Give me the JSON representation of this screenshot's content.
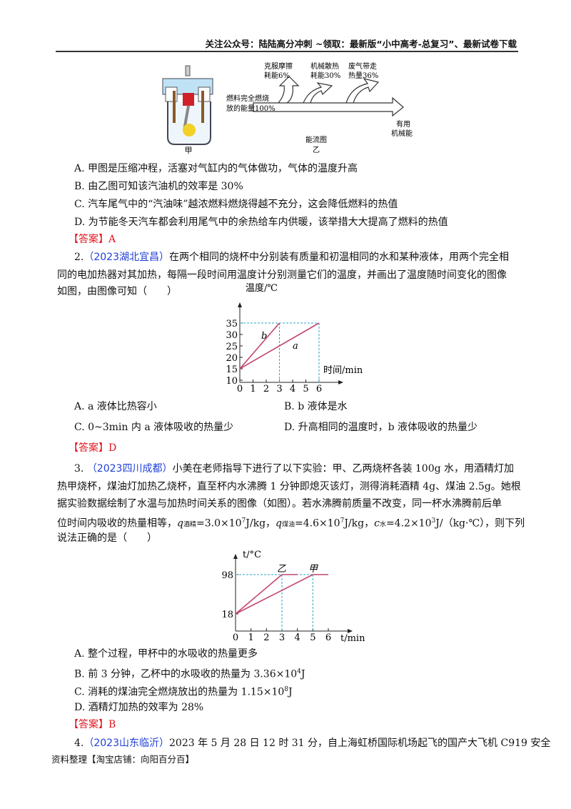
{
  "header": {
    "text": "关注公众号：陆陆高分冲刺  ~领取：最新版“小中高考-总复习”、最新试卷下载"
  },
  "figure1": {
    "label_jia": "甲",
    "label_yi": "乙",
    "caption": "能流图",
    "flows": [
      {
        "l1": "克服摩擦",
        "l2": "耗能6%"
      },
      {
        "l1": "机械散热",
        "l2": "耗能30%"
      },
      {
        "l1": "废气带走",
        "l2": "热量36%"
      }
    ],
    "input_l1": "燃料完全燃烧",
    "input_l2": "放的能量100%",
    "output_l1": "有用",
    "output_l2": "机械能"
  },
  "q1": {
    "options": [
      "A. 甲图是压缩冲程，活塞对气缸内的气体做功，气体的温度升高",
      "B. 由乙图可知该汽油机的效率是 30%",
      "C. 汽车尾气中的“汽油味”越浓燃料燃烧得越不充分，这会降低燃料的热值",
      "D. 为节能冬天汽车都会利用尾气中的余热给车内供暖，该举措大大提高了燃料的热值"
    ],
    "answer_label": "【答案】",
    "answer": "A"
  },
  "q2": {
    "num": "2.",
    "source": "（2023湖北宜昌）",
    "lines": [
      "在两个相同的烧杯中分别装有质量和初温相同的水和某种液体，用两个完全相",
      "同的电加热器对其加热，每隔一段时间用温度计分别测量它们的温度，并画出了温度随时间变化的图像",
      "如图，由图像可知（　　）"
    ],
    "options": [
      "A. a 液体比热容小",
      "B. b 液体是水",
      "C. 0~3min 内 a 液体吸收的热量少",
      "D. 升高相同的温度时，b 液体吸收的热量少"
    ],
    "answer_label": "【答案】",
    "answer": "D"
  },
  "q3": {
    "num": "3.",
    "source": "（2023四川成都）",
    "lines": [
      "小美在老师指导下进行了以下实验：甲、乙两烧杯各装 100g 水，用酒精灯加",
      "热甲烧杯，煤油灯加热乙烧杯，直至杯内水沸腾 1 分钟即熄灭该灯，测得消耗酒精 4g、煤油 2.5g。她根",
      "据实验数据绘制了水温与加热时间关系的图像（如图）。若水沸腾前质量不改变，同一杯水沸腾前后单"
    ],
    "line4": {
      "q1": "q",
      "s1": "酒精",
      "v1": "=3.0×10",
      "e1": "7",
      "u1": "J/kg，",
      "q2": "q",
      "s2": "煤油",
      "v2": "=4.6×10",
      "e2": "7",
      "u2": "J/kg，",
      "c": "c",
      "s3": "水",
      "v3": "=4.2×10",
      "e3": "3",
      "u3": "J/（kg·℃），则下列",
      "pre": "位时间内吸收的热量相等，"
    },
    "line5": "说法正确的是（　　）",
    "options": [
      "A. 整个过程，甲杯中的水吸收的热量更多",
      {
        "pre": "B. 前 3 分钟，乙杯中的水吸收的热量为 3.36×10",
        "exp": "4",
        "post": "J"
      },
      {
        "pre": "C. 消耗的煤油完全燃烧放出的热量为 1.15×10",
        "exp": "8",
        "post": "J"
      },
      "D. 酒精灯加热的效率为 28%"
    ],
    "answer_label": "【答案】",
    "answer": "B"
  },
  "q4": {
    "num": "4.",
    "source": "（2023山东临沂）",
    "text": "2023 年 5 月 28 日 12 时 31 分，自上海虹桥国际机场起飞的国产大飞机 C919 安全"
  },
  "footer": "资料整理【淘宝店铺：向阳百分百】",
  "colors": {
    "answer": "#e0141e",
    "source": "#1f3fd6",
    "line": "#c2456e",
    "guide": "#2aa7c9"
  },
  "chart_data": [
    {
      "type": "line",
      "xlabel": "时间/min",
      "ylabel": "温度/℃",
      "xticks": [
        0,
        1,
        2,
        3,
        4,
        5,
        6
      ],
      "yticks": [
        10,
        15,
        20,
        25,
        30,
        35
      ],
      "xlim": [
        0,
        6
      ],
      "ylim": [
        10,
        35
      ],
      "series": [
        {
          "name": "b",
          "x": [
            0,
            3
          ],
          "y": [
            15,
            35
          ]
        },
        {
          "name": "a",
          "x": [
            0,
            6
          ],
          "y": [
            15,
            35
          ]
        }
      ]
    },
    {
      "type": "line",
      "xlabel": "t/min",
      "ylabel": "t/°C",
      "xticks": [
        0,
        1,
        2,
        3,
        4,
        5,
        6
      ],
      "yticks": [
        18,
        98
      ],
      "xlim": [
        0,
        6
      ],
      "ylim": [
        18,
        98
      ],
      "series": [
        {
          "name": "乙",
          "x": [
            0,
            3,
            4
          ],
          "y": [
            18,
            98,
            98
          ]
        },
        {
          "name": "甲",
          "x": [
            0,
            5,
            6
          ],
          "y": [
            18,
            98,
            98
          ]
        }
      ]
    }
  ]
}
